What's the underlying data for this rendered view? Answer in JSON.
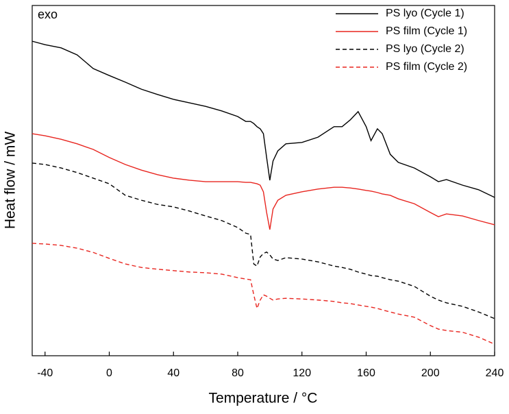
{
  "chart_data": {
    "type": "line",
    "annotation": "exo",
    "x_label": "Temperature / °C",
    "y_label": "Heat flow / mW",
    "x": [
      -48,
      -40,
      -30,
      -20,
      -10,
      0,
      10,
      20,
      30,
      40,
      50,
      60,
      70,
      80,
      85,
      88,
      90,
      92,
      94,
      96,
      98,
      100,
      102,
      105,
      110,
      120,
      130,
      140,
      145,
      150,
      155,
      160,
      163,
      167,
      170,
      175,
      180,
      190,
      200,
      205,
      210,
      220,
      230,
      240
    ],
    "series": [
      {
        "name": "PS lyo (Cycle 1)",
        "color": "#000000",
        "dashed": false,
        "values": [
          89.8,
          88.8,
          87.9,
          85.9,
          82.0,
          80.0,
          78.1,
          76.1,
          74.6,
          73.2,
          72.2,
          71.2,
          69.9,
          68.3,
          66.9,
          66.9,
          66.3,
          65.4,
          64.8,
          63.4,
          56.6,
          50.1,
          55.6,
          58.5,
          60.5,
          60.9,
          62.4,
          65.4,
          65.4,
          67.3,
          69.7,
          65.4,
          61.4,
          64.8,
          63.4,
          57.5,
          55.2,
          53.6,
          51.1,
          49.7,
          50.3,
          48.7,
          47.4,
          45.2
        ]
      },
      {
        "name": "PS film (Cycle 1)",
        "color": "#e8251f",
        "dashed": false,
        "values": [
          63.4,
          62.8,
          61.8,
          60.5,
          58.9,
          56.6,
          54.6,
          53.0,
          51.7,
          50.7,
          50.1,
          49.7,
          49.7,
          49.7,
          49.5,
          49.5,
          49.3,
          49.1,
          48.7,
          46.8,
          40.9,
          36.0,
          41.9,
          44.4,
          45.8,
          46.8,
          47.6,
          48.1,
          48.1,
          47.9,
          47.6,
          47.2,
          47.0,
          46.6,
          46.2,
          45.8,
          44.8,
          43.4,
          40.9,
          39.7,
          40.5,
          39.9,
          38.6,
          37.4
        ]
      },
      {
        "name": "PS lyo (Cycle 2)",
        "color": "#000000",
        "dashed": true,
        "values": [
          55.0,
          54.6,
          53.6,
          52.3,
          50.7,
          49.1,
          45.8,
          44.4,
          43.2,
          42.5,
          41.3,
          39.9,
          38.6,
          36.6,
          35.0,
          34.6,
          26.2,
          25.6,
          28.2,
          29.2,
          29.6,
          28.8,
          27.6,
          27.2,
          28.0,
          27.6,
          26.8,
          25.6,
          25.2,
          24.7,
          23.9,
          23.3,
          22.9,
          22.7,
          22.3,
          21.7,
          21.3,
          19.8,
          17.0,
          15.9,
          15.1,
          14.1,
          12.5,
          10.6
        ]
      },
      {
        "name": "PS film (Cycle 2)",
        "color": "#e8251f",
        "dashed": true,
        "values": [
          32.1,
          31.9,
          31.5,
          30.7,
          29.5,
          27.8,
          26.2,
          25.2,
          24.7,
          24.3,
          23.9,
          23.7,
          23.3,
          22.3,
          21.9,
          21.7,
          17.4,
          13.5,
          15.9,
          17.4,
          17.0,
          16.4,
          15.9,
          16.2,
          16.4,
          16.2,
          15.9,
          15.5,
          15.1,
          14.9,
          14.5,
          14.1,
          13.9,
          13.5,
          13.1,
          12.5,
          11.9,
          11.0,
          8.6,
          7.6,
          7.2,
          6.7,
          5.3,
          3.3
        ]
      }
    ],
    "xlim": [
      -48,
      240
    ],
    "xticks": [
      -40,
      0,
      40,
      80,
      120,
      160,
      200,
      240
    ],
    "ylim": [
      0,
      100
    ],
    "legend": "upper right"
  }
}
